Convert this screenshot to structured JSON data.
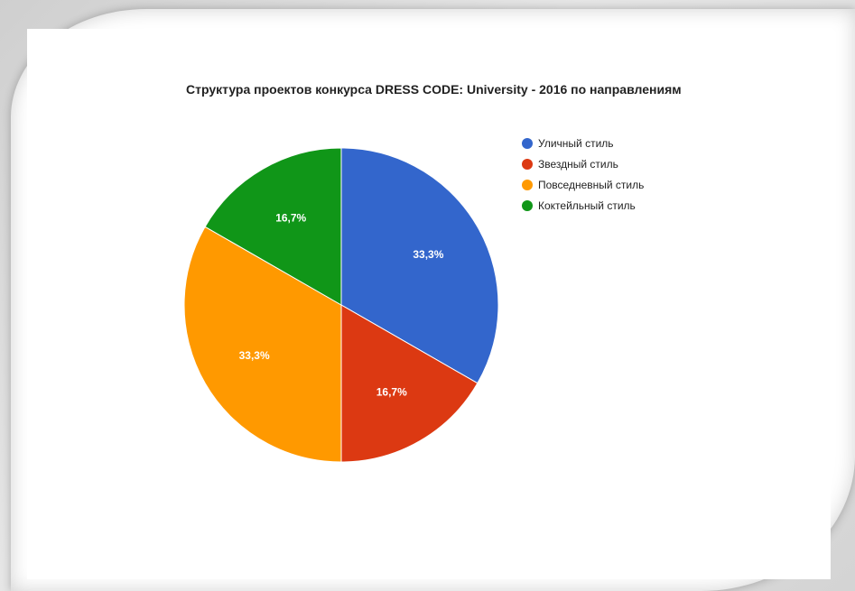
{
  "chart_data": {
    "type": "pie",
    "title": "Структура проектов конкурса DRESS CODE: University - 2016 по направлениям",
    "legend_position": "right",
    "slices": [
      {
        "name": "Уличный стиль",
        "percent": 33.3,
        "label": "33,3%",
        "color": "#3366cc"
      },
      {
        "name": "Звездный стиль",
        "percent": 16.7,
        "label": "16,7%",
        "color": "#dc3912"
      },
      {
        "name": "Повседневный стиль",
        "percent": 33.3,
        "label": "33,3%",
        "color": "#ff9900"
      },
      {
        "name": "Коктейльный стиль",
        "percent": 16.7,
        "label": "16,7%",
        "color": "#109618"
      }
    ]
  }
}
